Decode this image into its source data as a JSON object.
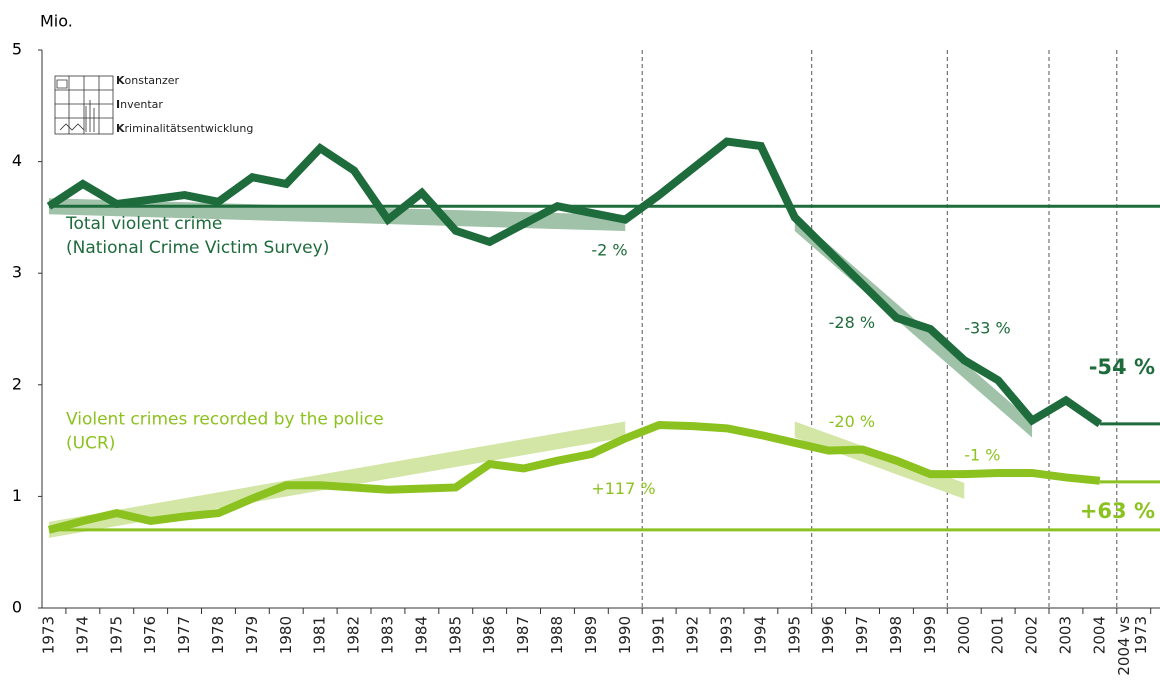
{
  "chart_data": {
    "type": "line",
    "y_label": "Mio.",
    "categories": [
      "1973",
      "1974",
      "1975",
      "1976",
      "1977",
      "1978",
      "1979",
      "1980",
      "1981",
      "1982",
      "1983",
      "1984",
      "1985",
      "1986",
      "1987",
      "1988",
      "1989",
      "1990",
      "1991",
      "1992",
      "1993",
      "1994",
      "1995",
      "1996",
      "1997",
      "1998",
      "1999",
      "2000",
      "2001",
      "2002",
      "2003",
      "2004",
      "2004 vs 1973"
    ],
    "series": [
      {
        "name": "Total violent crime",
        "subname": "(National Crime Victim Survey)",
        "color": "#1e6b3c",
        "trend_color": "#9fc2a8",
        "values": [
          3.6,
          3.8,
          3.62,
          3.66,
          3.7,
          3.64,
          3.86,
          3.8,
          4.12,
          3.92,
          3.48,
          3.72,
          3.38,
          3.28,
          3.44,
          3.6,
          3.54,
          3.48,
          3.7,
          3.94,
          4.18,
          4.14,
          3.5,
          3.2,
          2.9,
          2.6,
          2.5,
          2.22,
          2.04,
          1.68,
          1.86,
          1.65,
          null
        ]
      },
      {
        "name": "Violent crimes recorded by the police",
        "subname": "(UCR)",
        "color": "#8cc21f",
        "trend_color": "#d3e6a6",
        "values": [
          0.7,
          0.78,
          0.85,
          0.78,
          0.82,
          0.85,
          0.98,
          1.1,
          1.1,
          1.08,
          1.06,
          1.07,
          1.08,
          1.29,
          1.25,
          1.32,
          1.38,
          1.52,
          1.64,
          1.63,
          1.61,
          1.55,
          1.48,
          1.41,
          1.42,
          1.32,
          1.2,
          1.2,
          1.21,
          1.21,
          1.17,
          1.14,
          null
        ]
      }
    ],
    "reference_lines": [
      {
        "series": 0,
        "value": 3.6,
        "from": "1973"
      },
      {
        "series": 0,
        "value": 1.65,
        "from": "2004"
      },
      {
        "series": 1,
        "value": 0.7,
        "from": "1973"
      },
      {
        "series": 1,
        "value": 1.13,
        "from": "2004"
      }
    ],
    "trends": [
      {
        "series": 0,
        "from": "1973",
        "to": "1990",
        "values": [
          3.6,
          3.45
        ]
      },
      {
        "series": 0,
        "from": "1995",
        "to": "2002",
        "values": [
          3.45,
          1.6
        ]
      },
      {
        "series": 1,
        "from": "1973",
        "to": "1990",
        "values": [
          0.7,
          1.6
        ]
      },
      {
        "series": 1,
        "from": "1995",
        "to": "2000",
        "values": [
          1.6,
          1.05
        ]
      }
    ],
    "annotations": [
      {
        "series": 0,
        "text": "-2 %",
        "x": "1989",
        "y": 3.2
      },
      {
        "series": 0,
        "text": "-28 %",
        "x": "1996",
        "y": 2.55
      },
      {
        "series": 0,
        "text": "-33 %",
        "x": "2000",
        "y": 2.5
      },
      {
        "series": 1,
        "text": "+117 %",
        "x": "1989",
        "y": 1.06
      },
      {
        "series": 1,
        "text": "-20 %",
        "x": "1996",
        "y": 1.66
      },
      {
        "series": 1,
        "text": "-1 %",
        "x": "2000",
        "y": 1.36
      }
    ],
    "totals": [
      {
        "series": 0,
        "text": "-54 %",
        "y": 2.15
      },
      {
        "series": 1,
        "text": "+63 %",
        "y": 0.86
      }
    ],
    "dividers": [
      "1990",
      "1995",
      "1999",
      "2002",
      "2004"
    ],
    "logo": [
      "Konstanzer",
      "Inventar",
      "Kriminalitätsentwicklung"
    ],
    "ylim": [
      0,
      5
    ],
    "yticks": [
      0,
      1,
      2,
      3,
      4,
      5
    ]
  }
}
